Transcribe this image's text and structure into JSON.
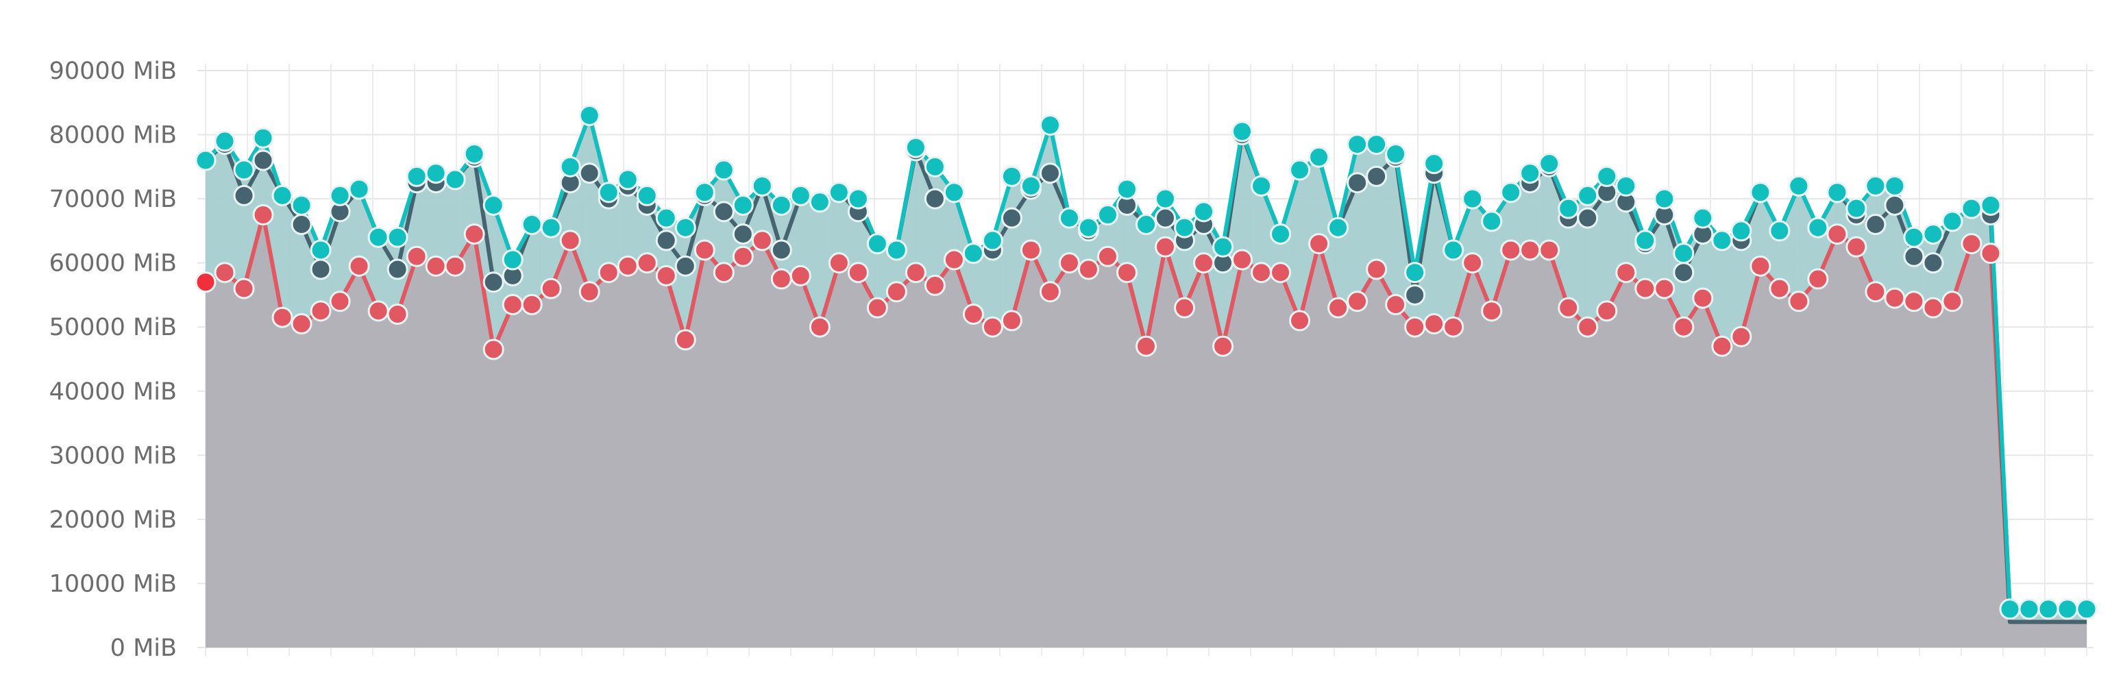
{
  "chart_data": {
    "type": "area",
    "title": "",
    "xlabel": "",
    "ylabel": "",
    "ylim": [
      0,
      90000
    ],
    "y_ticks": [
      "0 MiB",
      "10000 MiB",
      "20000 MiB",
      "30000 MiB",
      "40000 MiB",
      "50000 MiB",
      "60000 MiB",
      "70000 MiB",
      "80000 MiB",
      "90000 MiB"
    ],
    "y_tick_values": [
      0,
      10000,
      20000,
      30000,
      40000,
      50000,
      60000,
      70000,
      80000,
      90000
    ],
    "grid": true,
    "legend": "none",
    "colors": {
      "top": "#12bfbf",
      "middle": "#466470",
      "bottom": "#e25862",
      "bottom_fill": "#b3b2b8",
      "top_fill": "#a5cdd0"
    },
    "series": [
      {
        "key": "top",
        "values": [
          76000,
          79000,
          74500,
          79500,
          70500,
          69000,
          62000,
          70500,
          71500,
          64000,
          64000,
          73500,
          74000,
          73000,
          77000,
          69000,
          60500,
          66000,
          65500,
          75000,
          83000,
          71000,
          73000,
          70500,
          67000,
          65500,
          71000,
          74500,
          69000,
          72000,
          69000,
          70500,
          69500,
          71000,
          70000,
          63000,
          62000,
          78000,
          75000,
          71000,
          61500,
          63500,
          73500,
          72000,
          81500,
          67000,
          65500,
          67500,
          71500,
          66000,
          70000,
          65500,
          68000,
          62500,
          80500,
          72000,
          64500,
          74500,
          76500,
          65500,
          78500,
          78500,
          77000,
          58500,
          75500,
          62000,
          70000,
          66500,
          71000,
          74000,
          75500,
          68500,
          70500,
          73500,
          72000,
          63500,
          70000,
          61500,
          67000,
          63500,
          65000,
          71000,
          65000,
          72000,
          65500,
          71000,
          68500,
          72000,
          72000,
          64000,
          64500,
          66500,
          68500,
          69000,
          6000,
          6000,
          6000,
          6000,
          6000
        ]
      },
      {
        "key": "middle",
        "values": [
          76000,
          78500,
          70500,
          76000,
          70500,
          66000,
          59000,
          68000,
          71500,
          64000,
          59000,
          72500,
          72500,
          73000,
          76500,
          57000,
          58000,
          66000,
          65500,
          72500,
          74000,
          70000,
          72000,
          69000,
          63500,
          59500,
          70500,
          68000,
          64500,
          72000,
          62000,
          70500,
          69500,
          71000,
          68000,
          63000,
          62000,
          77500,
          70000,
          71000,
          61500,
          62000,
          67000,
          71500,
          74000,
          67000,
          65000,
          67500,
          69000,
          66000,
          67000,
          63500,
          66000,
          60000,
          80000,
          72000,
          64500,
          74500,
          76500,
          65500,
          72500,
          73500,
          76500,
          55000,
          74000,
          62000,
          70000,
          66500,
          71000,
          72500,
          75000,
          67000,
          67000,
          71000,
          69500,
          63000,
          67500,
          58500,
          64500,
          63500,
          63500,
          71000,
          65000,
          72000,
          65500,
          71000,
          67500,
          66000,
          69000,
          61000,
          60000,
          66500,
          68500,
          67500,
          4000,
          4000,
          4000,
          4000,
          4000
        ]
      },
      {
        "key": "bottom",
        "values": [
          57000,
          58500,
          56000,
          67500,
          51500,
          50500,
          52500,
          54000,
          59500,
          52500,
          52000,
          61000,
          59500,
          59500,
          64500,
          46500,
          53500,
          53500,
          56000,
          63500,
          55500,
          58500,
          59500,
          60000,
          58000,
          48000,
          62000,
          58500,
          61000,
          63500,
          57500,
          58000,
          50000,
          60000,
          58500,
          53000,
          55500,
          58500,
          56500,
          60500,
          52000,
          50000,
          51000,
          62000,
          55500,
          60000,
          59000,
          61000,
          58500,
          47000,
          62500,
          53000,
          60000,
          47000,
          60500,
          58500,
          58500,
          51000,
          63000,
          53000,
          54000,
          59000,
          53500,
          50000,
          50500,
          50000,
          60000,
          52500,
          62000,
          62000,
          62000,
          53000,
          50000,
          52500,
          58500,
          56000,
          56000,
          50000,
          54500,
          47000,
          48500,
          59500,
          56000,
          54000,
          57500,
          64500,
          62500,
          55500,
          54500,
          54000,
          53000,
          54000,
          63000,
          61500,
          4000,
          4000,
          4000,
          4000,
          4000
        ]
      }
    ]
  }
}
